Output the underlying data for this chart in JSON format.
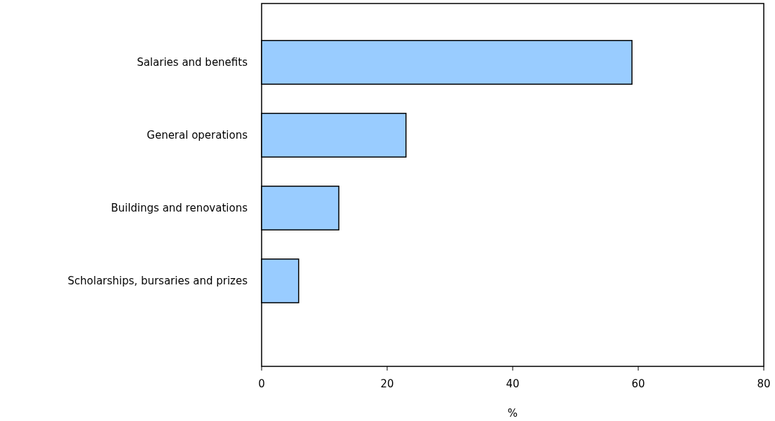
{
  "chart_data": {
    "type": "bar",
    "orientation": "horizontal",
    "xlabel": "%",
    "categories": [
      "Salaries and benefits",
      "General operations",
      "Buildings and renovations",
      "Scholarships, bursaries and prizes"
    ],
    "values": [
      59,
      23,
      12.3,
      5.9
    ],
    "color": "#99ccff",
    "xlim": [
      0,
      80
    ],
    "xticks": [
      0,
      20,
      40,
      60,
      80
    ]
  }
}
